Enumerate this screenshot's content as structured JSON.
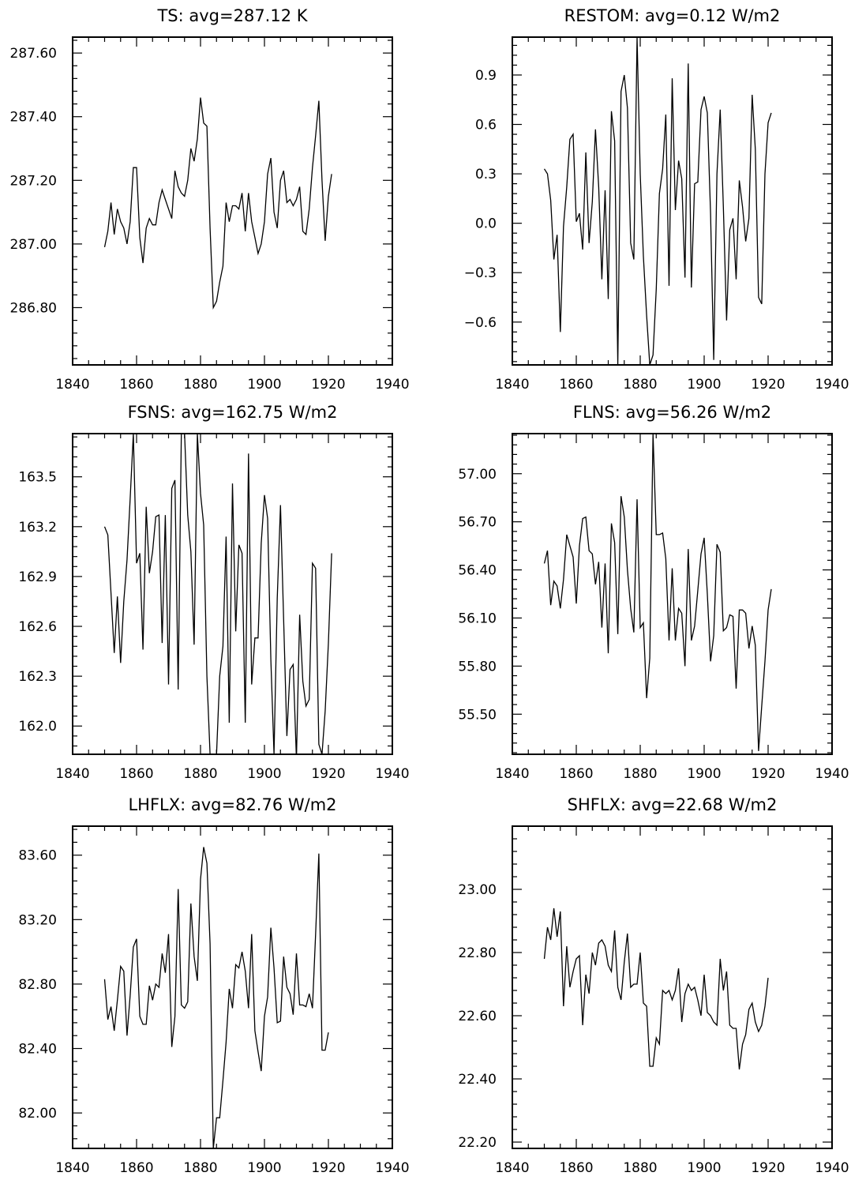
{
  "chart_data": [
    {
      "type": "line",
      "title": "TS: avg=287.12 K",
      "xlim": [
        1840,
        1940
      ],
      "ylim": [
        286.62,
        287.65
      ],
      "xticks": [
        1840,
        1860,
        1880,
        1900,
        1920,
        1940
      ],
      "yticks": [
        286.8,
        287.0,
        287.2,
        287.4,
        287.6
      ],
      "ytick_labels": [
        "286.80",
        "287.00",
        "287.20",
        "287.40",
        "287.60"
      ],
      "x_start": 1850,
      "values": [
        286.99,
        287.04,
        287.13,
        287.03,
        287.11,
        287.07,
        287.05,
        287.0,
        287.07,
        287.24,
        287.24,
        287.02,
        286.94,
        287.05,
        287.08,
        287.06,
        287.06,
        287.13,
        287.17,
        287.14,
        287.11,
        287.08,
        287.23,
        287.18,
        287.16,
        287.15,
        287.2,
        287.3,
        287.26,
        287.33,
        287.46,
        287.38,
        287.37,
        287.05,
        286.8,
        286.82,
        286.88,
        286.93,
        287.13,
        287.07,
        287.12,
        287.12,
        287.11,
        287.16,
        287.04,
        287.16,
        287.07,
        287.02,
        286.97,
        287.0,
        287.07,
        287.22,
        287.27,
        287.1,
        287.05,
        287.2,
        287.23,
        287.13,
        287.14,
        287.12,
        287.14,
        287.18,
        287.04,
        287.03,
        287.11,
        287.24,
        287.34,
        287.45,
        287.2,
        287.01,
        287.15,
        287.22
      ]
    },
    {
      "type": "line",
      "title": "RESTOM: avg=0.12 W/m2",
      "xlim": [
        1840,
        1940
      ],
      "ylim": [
        -0.86,
        1.13
      ],
      "xticks": [
        1840,
        1860,
        1880,
        1900,
        1920,
        1940
      ],
      "yticks": [
        -0.6,
        -0.3,
        0.0,
        0.3,
        0.6,
        0.9
      ],
      "ytick_labels": [
        "−0.6",
        "−0.3",
        "0.0",
        "0.3",
        "0.6",
        "0.9"
      ],
      "x_start": 1850,
      "values": [
        0.33,
        0.3,
        0.14,
        -0.22,
        -0.07,
        -0.66,
        -0.02,
        0.22,
        0.51,
        0.54,
        0.01,
        0.06,
        -0.16,
        0.43,
        -0.12,
        0.13,
        0.57,
        0.22,
        -0.34,
        0.2,
        -0.46,
        0.68,
        0.5,
        -0.86,
        0.8,
        0.9,
        0.7,
        -0.12,
        -0.22,
        1.13,
        0.3,
        -0.2,
        -0.56,
        -0.86,
        -0.8,
        -0.4,
        0.18,
        0.33,
        0.66,
        -0.38,
        0.88,
        0.08,
        0.38,
        0.27,
        -0.33,
        0.97,
        -0.39,
        0.24,
        0.25,
        0.69,
        0.77,
        0.67,
        0.06,
        -0.83,
        0.3,
        0.69,
        0.1,
        -0.59,
        -0.04,
        0.03,
        -0.34,
        0.26,
        0.1,
        -0.11,
        0.03,
        0.78,
        0.45,
        -0.45,
        -0.49,
        0.3,
        0.61,
        0.67
      ]
    },
    {
      "type": "line",
      "title": "FSNS: avg=162.75 W/m2",
      "xlim": [
        1840,
        1940
      ],
      "ylim": [
        161.83,
        163.76
      ],
      "xticks": [
        1840,
        1860,
        1880,
        1900,
        1920,
        1940
      ],
      "yticks": [
        162.0,
        162.3,
        162.6,
        162.9,
        163.2,
        163.5
      ],
      "ytick_labels": [
        "162.0",
        "162.3",
        "162.6",
        "162.9",
        "163.2",
        "163.5"
      ],
      "x_start": 1850,
      "values": [
        163.2,
        163.15,
        162.8,
        162.44,
        162.78,
        162.38,
        162.75,
        163.0,
        163.37,
        163.76,
        162.98,
        163.04,
        162.46,
        163.32,
        162.92,
        163.05,
        163.26,
        163.27,
        162.5,
        163.27,
        162.25,
        163.43,
        163.48,
        162.22,
        163.76,
        163.76,
        163.27,
        163.05,
        162.49,
        163.76,
        163.4,
        163.21,
        162.3,
        161.83,
        161.83,
        161.83,
        162.3,
        162.48,
        163.14,
        162.02,
        163.46,
        162.57,
        163.09,
        163.04,
        162.02,
        163.64,
        162.25,
        162.53,
        162.53,
        163.1,
        163.39,
        163.25,
        162.4,
        161.83,
        162.77,
        163.33,
        162.64,
        161.94,
        162.34,
        162.37,
        161.8,
        162.67,
        162.27,
        162.12,
        162.16,
        162.98,
        162.95,
        161.89,
        161.83,
        162.09,
        162.5,
        163.04
      ]
    },
    {
      "type": "line",
      "title": "FLNS: avg=56.26 W/m2",
      "xlim": [
        1840,
        1940
      ],
      "ylim": [
        55.25,
        57.25
      ],
      "xticks": [
        1840,
        1860,
        1880,
        1900,
        1920,
        1940
      ],
      "yticks": [
        55.5,
        55.8,
        56.1,
        56.4,
        56.7,
        57.0
      ],
      "ytick_labels": [
        "55.50",
        "55.80",
        "56.10",
        "56.40",
        "56.70",
        "57.00"
      ],
      "x_start": 1850,
      "values": [
        56.44,
        56.52,
        56.18,
        56.33,
        56.3,
        56.16,
        56.34,
        56.62,
        56.55,
        56.48,
        56.19,
        56.55,
        56.72,
        56.73,
        56.52,
        56.5,
        56.31,
        56.45,
        56.04,
        56.44,
        55.88,
        56.69,
        56.57,
        56.0,
        56.86,
        56.73,
        56.4,
        56.16,
        56.01,
        56.84,
        56.04,
        56.07,
        55.6,
        55.85,
        57.25,
        56.62,
        56.62,
        56.63,
        56.47,
        55.96,
        56.41,
        55.96,
        56.16,
        56.13,
        55.8,
        56.53,
        55.96,
        56.05,
        56.27,
        56.5,
        56.6,
        56.25,
        55.83,
        55.99,
        56.56,
        56.51,
        56.02,
        56.04,
        56.12,
        56.11,
        55.66,
        56.15,
        56.15,
        56.13,
        55.91,
        56.05,
        55.93,
        55.27,
        55.55,
        55.83,
        56.15,
        56.28
      ]
    },
    {
      "type": "line",
      "title": "LHFLX: avg=82.76 W/m2",
      "xlim": [
        1840,
        1940
      ],
      "ylim": [
        81.78,
        83.78
      ],
      "xticks": [
        1840,
        1860,
        1880,
        1900,
        1920,
        1940
      ],
      "yticks": [
        82.0,
        82.4,
        82.8,
        83.2,
        83.6
      ],
      "ytick_labels": [
        "82.00",
        "82.40",
        "82.80",
        "83.20",
        "83.60"
      ],
      "x_start": 1850,
      "values": [
        82.83,
        82.58,
        82.66,
        82.51,
        82.7,
        82.91,
        82.88,
        82.48,
        82.73,
        83.03,
        83.08,
        82.6,
        82.55,
        82.55,
        82.79,
        82.7,
        82.8,
        82.78,
        82.99,
        82.87,
        83.11,
        82.41,
        82.6,
        83.39,
        82.67,
        82.65,
        82.69,
        83.3,
        82.97,
        82.82,
        83.45,
        83.65,
        83.55,
        83.05,
        81.78,
        81.97,
        81.97,
        82.2,
        82.44,
        82.77,
        82.65,
        82.92,
        82.9,
        83.0,
        82.88,
        82.65,
        83.11,
        82.51,
        82.38,
        82.26,
        82.6,
        82.72,
        83.15,
        82.9,
        82.56,
        82.57,
        82.97,
        82.78,
        82.74,
        82.61,
        82.99,
        82.67,
        82.67,
        82.66,
        82.74,
        82.65,
        83.11,
        83.61,
        82.39,
        82.39,
        82.5
      ]
    },
    {
      "type": "line",
      "title": "SHFLX: avg=22.68 W/m2",
      "xlim": [
        1840,
        1940
      ],
      "ylim": [
        22.18,
        23.2
      ],
      "xticks": [
        1840,
        1860,
        1880,
        1900,
        1920,
        1940
      ],
      "yticks": [
        22.2,
        22.4,
        22.6,
        22.8,
        23.0
      ],
      "ytick_labels": [
        "22.20",
        "22.40",
        "22.60",
        "22.80",
        "23.00"
      ],
      "x_start": 1850,
      "values": [
        22.78,
        22.88,
        22.84,
        22.94,
        22.85,
        22.93,
        22.63,
        22.82,
        22.69,
        22.74,
        22.78,
        22.79,
        22.57,
        22.73,
        22.67,
        22.8,
        22.76,
        22.83,
        22.84,
        22.82,
        22.76,
        22.74,
        22.87,
        22.69,
        22.65,
        22.77,
        22.86,
        22.69,
        22.7,
        22.7,
        22.8,
        22.64,
        22.63,
        22.44,
        22.44,
        22.53,
        22.51,
        22.68,
        22.67,
        22.68,
        22.65,
        22.68,
        22.75,
        22.58,
        22.67,
        22.7,
        22.68,
        22.69,
        22.65,
        22.6,
        22.73,
        22.61,
        22.6,
        22.58,
        22.57,
        22.78,
        22.68,
        22.74,
        22.57,
        22.56,
        22.56,
        22.43,
        22.51,
        22.54,
        22.62,
        22.64,
        22.58,
        22.55,
        22.57,
        22.63,
        22.72
      ]
    }
  ]
}
